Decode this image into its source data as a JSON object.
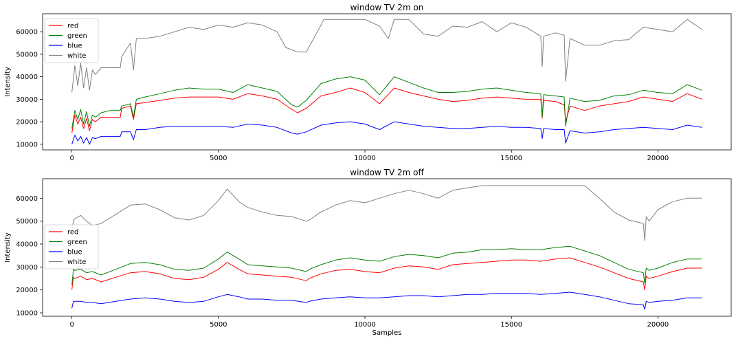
{
  "chart_data": [
    {
      "type": "line",
      "title": "window TV 2m on",
      "xlabel": "",
      "ylabel": "Intensity",
      "xlim": [
        -1000,
        22500
      ],
      "ylim": [
        7500,
        68000
      ],
      "xticks": [
        0,
        5000,
        10000,
        15000,
        20000
      ],
      "yticks": [
        10000,
        20000,
        30000,
        40000,
        50000,
        60000
      ],
      "grid": false,
      "legend": "top-left",
      "series": [
        {
          "name": "red",
          "color": "#ff0000",
          "x": [
            0,
            100,
            200,
            300,
            400,
            500,
            600,
            700,
            800,
            1000,
            1300,
            1650,
            1700,
            2000,
            2100,
            2200,
            2500,
            3000,
            3500,
            4000,
            4500,
            5000,
            5500,
            6000,
            6500,
            7000,
            7500,
            7700,
            8000,
            8500,
            9000,
            9500,
            10000,
            10500,
            11000,
            11500,
            12000,
            12500,
            13000,
            13500,
            14000,
            14500,
            15000,
            15500,
            16000,
            16050,
            16100,
            16500,
            16800,
            16850,
            17000,
            17500,
            18000,
            18500,
            19000,
            19500,
            20000,
            20500,
            21000,
            21500
          ],
          "y": [
            15000,
            23000,
            19000,
            22000,
            17000,
            21500,
            16000,
            21000,
            20000,
            22000,
            22000,
            22000,
            26000,
            27000,
            21000,
            28000,
            28500,
            29500,
            30500,
            31000,
            31000,
            31000,
            30000,
            32500,
            31500,
            30000,
            25500,
            24000,
            26000,
            31500,
            33000,
            35000,
            33000,
            28000,
            35000,
            33000,
            31500,
            30000,
            29000,
            29500,
            30500,
            31000,
            30500,
            30000,
            30000,
            21500,
            29500,
            29000,
            27500,
            20000,
            27000,
            25000,
            27000,
            28000,
            29000,
            31000,
            30000,
            29000,
            32500,
            30000
          ]
        },
        {
          "name": "green",
          "color": "#008000",
          "x": [
            0,
            100,
            200,
            300,
            400,
            500,
            600,
            700,
            800,
            1000,
            1300,
            1650,
            1700,
            2000,
            2100,
            2200,
            2500,
            3000,
            3500,
            4000,
            4500,
            5000,
            5500,
            6000,
            6500,
            7000,
            7500,
            7700,
            8000,
            8500,
            9000,
            9500,
            10000,
            10500,
            11000,
            11500,
            12000,
            12500,
            13000,
            13500,
            14000,
            14500,
            15000,
            15500,
            16000,
            16050,
            16100,
            16500,
            16800,
            16850,
            17000,
            17500,
            18000,
            18500,
            19000,
            19500,
            20000,
            20500,
            21000,
            21500
          ],
          "y": [
            17000,
            25000,
            21000,
            25500,
            19000,
            24500,
            18000,
            23000,
            22000,
            24000,
            25000,
            25000,
            27000,
            28000,
            22000,
            30000,
            31000,
            32500,
            34000,
            35000,
            34500,
            34500,
            33000,
            36500,
            35000,
            33500,
            27500,
            26500,
            29500,
            37000,
            39000,
            40000,
            38500,
            32000,
            40000,
            37500,
            35000,
            33000,
            33000,
            33500,
            34500,
            35000,
            34000,
            33000,
            32500,
            22000,
            32000,
            31500,
            31000,
            18000,
            30500,
            29000,
            29500,
            31500,
            32000,
            34000,
            33000,
            32500,
            36500,
            34000
          ]
        },
        {
          "name": "blue",
          "color": "#0000ff",
          "x": [
            0,
            100,
            200,
            300,
            400,
            500,
            600,
            700,
            800,
            1000,
            1300,
            1650,
            1700,
            2000,
            2100,
            2200,
            2500,
            3000,
            3500,
            4000,
            4500,
            5000,
            5500,
            6000,
            6500,
            7000,
            7500,
            7700,
            8000,
            8500,
            9000,
            9500,
            10000,
            10500,
            11000,
            11500,
            12000,
            12500,
            13000,
            13500,
            14000,
            14500,
            15000,
            15500,
            16000,
            16050,
            16100,
            16500,
            16800,
            16850,
            17000,
            17500,
            18000,
            18500,
            19000,
            19500,
            20000,
            20500,
            21000,
            21500
          ],
          "y": [
            10000,
            14000,
            11500,
            13500,
            10500,
            13000,
            10000,
            13000,
            12500,
            13500,
            13500,
            13500,
            15500,
            15500,
            12000,
            16500,
            16500,
            17500,
            18000,
            18000,
            18000,
            18000,
            17500,
            19000,
            18500,
            17500,
            15000,
            14500,
            15500,
            18500,
            19500,
            20000,
            19000,
            16500,
            20000,
            19000,
            18000,
            17500,
            17000,
            17000,
            17500,
            18000,
            17500,
            17500,
            17000,
            12500,
            17000,
            16500,
            16500,
            10500,
            16000,
            15000,
            15500,
            16500,
            17000,
            17500,
            17000,
            16500,
            18500,
            17500
          ]
        },
        {
          "name": "white",
          "color": "#808080",
          "x": [
            0,
            100,
            200,
            300,
            400,
            500,
            600,
            700,
            800,
            1000,
            1300,
            1650,
            1700,
            2000,
            2100,
            2200,
            2500,
            3000,
            3500,
            4000,
            4500,
            5000,
            5500,
            6000,
            6500,
            7000,
            7300,
            7700,
            8000,
            8500,
            8600,
            9000,
            9500,
            10000,
            10500,
            10800,
            11000,
            11200,
            11500,
            12000,
            12500,
            13000,
            13500,
            14000,
            14500,
            15000,
            15500,
            16000,
            16050,
            16100,
            16500,
            16800,
            16850,
            17000,
            17500,
            18000,
            18500,
            19000,
            19500,
            20000,
            20500,
            21000,
            21500
          ],
          "y": [
            33000,
            45000,
            36000,
            46000,
            35000,
            44000,
            34000,
            43000,
            41000,
            44000,
            44000,
            44000,
            49000,
            55000,
            43000,
            57000,
            57000,
            58000,
            60000,
            62000,
            61000,
            63000,
            62000,
            64000,
            63000,
            60000,
            53000,
            51000,
            51000,
            63000,
            65500,
            65500,
            65500,
            65500,
            62500,
            57000,
            65500,
            65500,
            65500,
            59000,
            58000,
            62500,
            62000,
            64500,
            60000,
            64000,
            62000,
            58000,
            44500,
            58000,
            59500,
            58500,
            38000,
            57000,
            54000,
            54000,
            56000,
            56500,
            62000,
            61000,
            60000,
            65500,
            61000
          ]
        }
      ]
    },
    {
      "type": "line",
      "title": "window TV 2m off",
      "xlabel": "Samples",
      "ylabel": "Intensity",
      "xlim": [
        -1000,
        22500
      ],
      "ylim": [
        8500,
        68500
      ],
      "xticks": [
        0,
        5000,
        10000,
        15000,
        20000
      ],
      "yticks": [
        10000,
        20000,
        30000,
        40000,
        50000,
        60000
      ],
      "grid": false,
      "legend": "center-left",
      "series": [
        {
          "name": "red",
          "color": "#ff0000",
          "x": [
            0,
            50,
            100,
            300,
            500,
            700,
            1000,
            1500,
            2000,
            2500,
            3000,
            3500,
            4000,
            4500,
            5000,
            5300,
            5700,
            6000,
            6500,
            7000,
            7500,
            8000,
            8100,
            8500,
            9000,
            9500,
            10000,
            10500,
            11000,
            11500,
            12000,
            12500,
            13000,
            13500,
            14000,
            14500,
            15000,
            15500,
            16000,
            16500,
            17000,
            17500,
            18000,
            18500,
            19000,
            19500,
            19550,
            19600,
            19700,
            20000,
            20500,
            21000,
            21500
          ],
          "y": [
            20000,
            25500,
            25000,
            26000,
            24500,
            25000,
            23500,
            25500,
            27500,
            28000,
            27000,
            25000,
            24500,
            25500,
            29000,
            32000,
            29000,
            27000,
            26500,
            26000,
            25500,
            24000,
            25000,
            27000,
            28500,
            29000,
            28000,
            27500,
            29500,
            30500,
            30000,
            29000,
            31000,
            31500,
            32000,
            32500,
            33000,
            33000,
            32500,
            33500,
            34000,
            32000,
            30000,
            27500,
            25000,
            23500,
            20000,
            26000,
            25000,
            26000,
            28000,
            29500,
            29500
          ]
        },
        {
          "name": "green",
          "color": "#008000",
          "x": [
            0,
            50,
            100,
            300,
            500,
            700,
            1000,
            1500,
            2000,
            2500,
            3000,
            3500,
            4000,
            4500,
            5000,
            5300,
            5700,
            6000,
            6500,
            7000,
            7500,
            8000,
            8100,
            8500,
            9000,
            9500,
            10000,
            10500,
            11000,
            11500,
            12000,
            12500,
            13000,
            13500,
            14000,
            14500,
            15000,
            15500,
            16000,
            16500,
            17000,
            17500,
            18000,
            18500,
            19000,
            19500,
            19550,
            19600,
            19700,
            20000,
            20500,
            21000,
            21500
          ],
          "y": [
            22000,
            29000,
            28500,
            29000,
            27500,
            28000,
            26500,
            29000,
            31500,
            32000,
            31000,
            29000,
            28500,
            29500,
            33500,
            36500,
            33500,
            31000,
            30500,
            30000,
            29500,
            28000,
            29000,
            31000,
            33000,
            34000,
            33000,
            32500,
            34500,
            35500,
            35000,
            34000,
            36000,
            36500,
            37500,
            37500,
            38000,
            37500,
            37500,
            38500,
            39000,
            37000,
            35000,
            32000,
            29000,
            27500,
            23000,
            29500,
            28500,
            29500,
            32000,
            33500,
            33500
          ]
        },
        {
          "name": "blue",
          "color": "#0000ff",
          "x": [
            0,
            50,
            100,
            300,
            500,
            700,
            1000,
            1500,
            2000,
            2500,
            3000,
            3500,
            4000,
            4500,
            5000,
            5300,
            5700,
            6000,
            6500,
            7000,
            7500,
            8000,
            8100,
            8500,
            9000,
            9500,
            10000,
            10500,
            11000,
            11500,
            12000,
            12500,
            13000,
            13500,
            14000,
            14500,
            15000,
            15500,
            16000,
            16500,
            17000,
            17500,
            18000,
            18500,
            19000,
            19500,
            19550,
            19600,
            19700,
            20000,
            20500,
            21000,
            21500
          ],
          "y": [
            12000,
            15000,
            15000,
            15000,
            14500,
            14500,
            14000,
            15000,
            16000,
            16500,
            16000,
            15000,
            14500,
            15000,
            17000,
            18000,
            17000,
            16000,
            16000,
            15500,
            15500,
            14500,
            15000,
            16000,
            16500,
            17000,
            16500,
            16500,
            17000,
            17500,
            17500,
            17000,
            17500,
            18000,
            18000,
            18500,
            18500,
            18500,
            18000,
            18500,
            19000,
            18000,
            17000,
            15500,
            14000,
            13500,
            11500,
            15000,
            14500,
            15000,
            15500,
            16500,
            16500
          ]
        },
        {
          "name": "white",
          "color": "#808080",
          "x": [
            0,
            50,
            100,
            300,
            500,
            700,
            1000,
            1500,
            2000,
            2500,
            3000,
            3500,
            4000,
            4500,
            5000,
            5300,
            5700,
            6000,
            6500,
            7000,
            7500,
            8000,
            8100,
            8500,
            9000,
            9500,
            10000,
            10500,
            11000,
            11500,
            12000,
            12500,
            13000,
            13500,
            14000,
            14500,
            15000,
            15500,
            16000,
            16500,
            17000,
            17500,
            18000,
            18500,
            19000,
            19500,
            19550,
            19600,
            19700,
            20000,
            20500,
            21000,
            21500
          ],
          "y": [
            45000,
            50500,
            51000,
            52500,
            50000,
            48000,
            49000,
            53000,
            57000,
            57500,
            55000,
            51500,
            50500,
            52500,
            59000,
            64000,
            58500,
            56000,
            54000,
            52500,
            52000,
            50000,
            50500,
            54000,
            57000,
            59000,
            58000,
            60000,
            62000,
            63500,
            62000,
            60000,
            63500,
            64500,
            65500,
            65500,
            65500,
            65500,
            65500,
            65500,
            65500,
            65500,
            60000,
            54000,
            50500,
            49000,
            41500,
            52000,
            50000,
            55000,
            58500,
            60000,
            60000
          ]
        }
      ]
    }
  ]
}
